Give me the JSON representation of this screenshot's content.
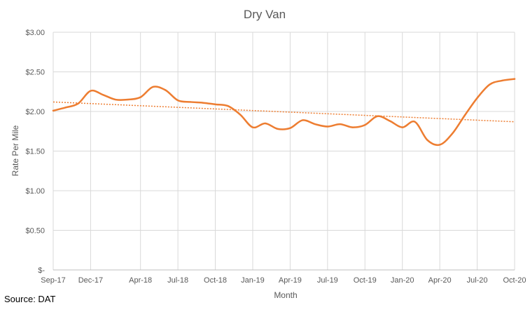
{
  "chart_data": {
    "type": "line",
    "title": "Dry Van",
    "xlabel": "Month",
    "ylabel": "Rate Per Mile",
    "x_tick_labels": [
      "Sep-17",
      "Dec-17",
      "Apr-18",
      "Jul-18",
      "Oct-18",
      "Jan-19",
      "Apr-19",
      "Jul-19",
      "Oct-19",
      "Jan-20",
      "Apr-20",
      "Jul-20",
      "Oct-20"
    ],
    "y_tick_labels": [
      "$-",
      "$0.50",
      "$1.00",
      "$1.50",
      "$2.00",
      "$2.50",
      "$3.00"
    ],
    "ylim": [
      0,
      3.0
    ],
    "grid": "vertical and horizontal",
    "series": [
      {
        "color": "#ED7D31",
        "x": [
          "Sep-17",
          "Oct-17",
          "Nov-17",
          "Dec-17",
          "Jan-18",
          "Feb-18",
          "Mar-18",
          "Apr-18",
          "May-18",
          "Jun-18",
          "Jul-18",
          "Aug-18",
          "Sep-18",
          "Oct-18",
          "Nov-18",
          "Dec-18",
          "Jan-19",
          "Feb-19",
          "Mar-19",
          "Apr-19",
          "May-19",
          "Jun-19",
          "Jul-19",
          "Aug-19",
          "Sep-19",
          "Oct-19",
          "Nov-19",
          "Dec-19",
          "Jan-20",
          "Feb-20",
          "Mar-20",
          "Apr-20",
          "May-20",
          "Jun-20",
          "Jul-20",
          "Aug-20",
          "Sep-20",
          "Oct-20"
        ],
        "values": [
          2.01,
          2.05,
          2.1,
          2.26,
          2.21,
          2.15,
          2.15,
          2.18,
          2.31,
          2.27,
          2.14,
          2.12,
          2.11,
          2.09,
          2.07,
          1.96,
          1.8,
          1.85,
          1.78,
          1.79,
          1.89,
          1.84,
          1.81,
          1.84,
          1.8,
          1.83,
          1.94,
          1.88,
          1.8,
          1.87,
          1.64,
          1.58,
          1.72,
          1.95,
          2.17,
          2.34,
          2.39,
          2.41
        ]
      }
    ],
    "trendline": {
      "style": "dotted",
      "color": "#ED7D31",
      "start": 2.12,
      "end": 1.87
    }
  },
  "source_label": "Source: DAT"
}
